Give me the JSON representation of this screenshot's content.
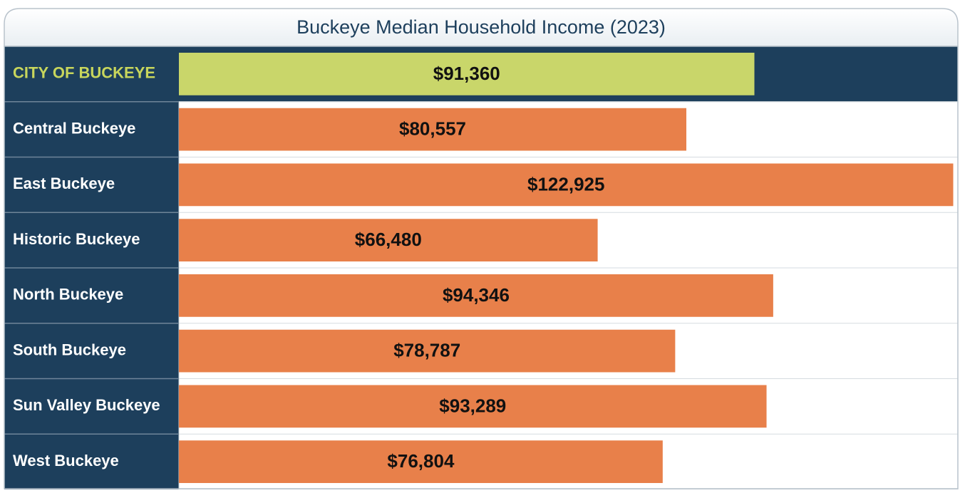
{
  "chart_data": {
    "type": "bar",
    "orientation": "horizontal",
    "title": "Buckeye Median Household Income (2023)",
    "categories": [
      "CITY OF BUCKEYE",
      "Central Buckeye",
      "East Buckeye",
      "Historic Buckeye",
      "North Buckeye",
      "South Buckeye",
      "Sun Valley Buckeye",
      "West Buckeye"
    ],
    "values": [
      91360,
      80557,
      122925,
      66480,
      94346,
      78787,
      93289,
      76804
    ],
    "value_labels": [
      "$91,360",
      "$80,557",
      "$122,925",
      "$66,480",
      "$94,346",
      "$78,787",
      "$93,289",
      "$76,804"
    ],
    "colors": [
      "#c9d66a",
      "#e8804a",
      "#e8804a",
      "#e8804a",
      "#e8804a",
      "#e8804a",
      "#e8804a",
      "#e8804a"
    ],
    "xlim": [
      0,
      124000
    ]
  }
}
